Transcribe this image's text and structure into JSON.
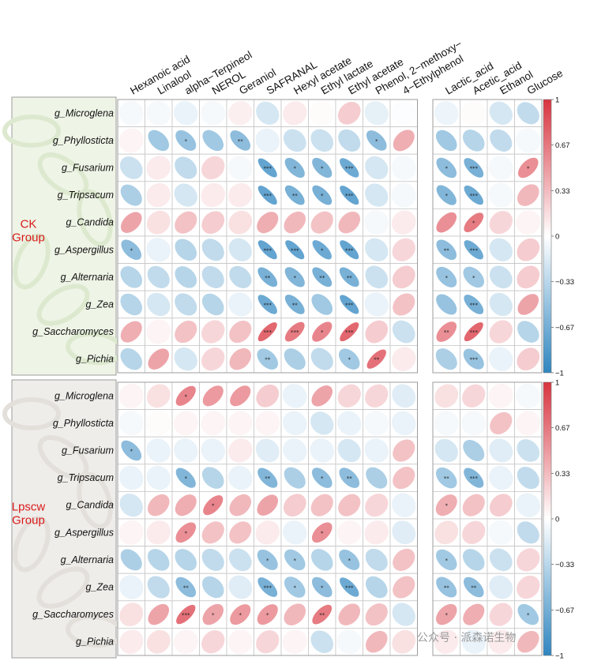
{
  "watermark": "公众号 · 派森诺生物",
  "chart_data": {
    "type": "heatmap",
    "glyph": "ellipse",
    "columns": [
      "Hexanoic acid",
      "Linalool",
      "alpha−Terpineol",
      "NEROL",
      "Geraniol",
      "SAFRANAL",
      "Hexyl acetate",
      "Ethyl lactate",
      "Ethyl acetate",
      "Phenol, 2−methoxy−",
      "4−Ethylphenol",
      "Lactic_acid",
      "Acetic_acid",
      "Ethanol",
      "Glucose"
    ],
    "colorbar": {
      "min": -1,
      "max": 1,
      "ticks": [
        "1",
        "0.67",
        "0.33",
        "0",
        "−0.33",
        "−0.67",
        "−1"
      ],
      "neg_color": "#2f86c0",
      "mid_color": "#ffffff",
      "pos_color": "#d8343f"
    },
    "groups": [
      {
        "label_line1": "CK",
        "label_line2": "Group",
        "rows": [
          "g_Microglena",
          "g_Phyllosticta",
          "g_Fusarium",
          "g_Tripsacum",
          "g_Candida",
          "g_Aspergillus",
          "g_Alternaria",
          "g_Zea",
          "g_Saccharomyces",
          "g_Pichia"
        ],
        "values": [
          [
            -0.05,
            -0.05,
            -0.1,
            -0.05,
            0.08,
            -0.2,
            0.1,
            0.02,
            0.25,
            -0.12,
            -0.02,
            -0.08,
            0.02,
            -0.2,
            -0.3
          ],
          [
            0.05,
            -0.45,
            -0.5,
            -0.45,
            -0.55,
            -0.1,
            -0.25,
            -0.25,
            -0.3,
            -0.55,
            0.4,
            -0.45,
            -0.35,
            -0.3,
            -0.05
          ],
          [
            -0.25,
            0.1,
            -0.3,
            0.2,
            -0.05,
            -0.75,
            -0.6,
            -0.6,
            -0.7,
            -0.2,
            -0.05,
            -0.55,
            -0.65,
            -0.05,
            0.55
          ],
          [
            -0.4,
            0.1,
            -0.2,
            0.1,
            0.1,
            -0.75,
            -0.65,
            -0.65,
            -0.75,
            -0.2,
            -0.05,
            -0.6,
            -0.7,
            -0.05,
            0.35
          ],
          [
            0.45,
            0.15,
            0.3,
            0.25,
            0.15,
            0.4,
            0.35,
            0.3,
            0.35,
            -0.05,
            0.1,
            0.55,
            0.65,
            0.2,
            0.05
          ],
          [
            -0.55,
            -0.1,
            -0.35,
            -0.3,
            -0.2,
            -0.75,
            -0.75,
            -0.7,
            -0.75,
            -0.2,
            0.2,
            -0.55,
            -0.7,
            -0.2,
            0.25
          ],
          [
            -0.35,
            -0.3,
            -0.35,
            -0.3,
            -0.3,
            -0.65,
            -0.6,
            -0.65,
            -0.65,
            -0.25,
            0.25,
            -0.5,
            -0.45,
            -0.25,
            0.25
          ],
          [
            -0.35,
            -0.2,
            -0.3,
            -0.35,
            -0.1,
            -0.7,
            -0.65,
            -0.45,
            -0.75,
            -0.1,
            0.3,
            -0.5,
            -0.65,
            -0.2,
            0.45
          ],
          [
            0.4,
            0.05,
            0.3,
            0.2,
            0.3,
            0.75,
            0.65,
            0.6,
            0.75,
            0.25,
            -0.25,
            0.55,
            0.75,
            0.2,
            -0.35
          ],
          [
            -0.35,
            0.45,
            -0.2,
            0.2,
            0.35,
            -0.45,
            -0.4,
            -0.3,
            -0.45,
            0.7,
            0.1,
            -0.4,
            -0.5,
            -0.1,
            0.25
          ]
        ],
        "stars": [
          [
            "",
            "",
            "",
            "",
            "",
            "",
            "",
            "",
            "",
            "",
            "",
            "",
            "",
            "",
            ""
          ],
          [
            "",
            "",
            "*",
            "",
            "**",
            "",
            "",
            "",
            "",
            "*",
            "",
            "",
            "",
            "",
            ""
          ],
          [
            "",
            "",
            "",
            "",
            "",
            "***",
            "*",
            "*",
            "***",
            "",
            "",
            "*",
            "***",
            "",
            "*"
          ],
          [
            "",
            "",
            "",
            "",
            "",
            "***",
            "**",
            "*",
            "***",
            "",
            "",
            "*",
            "***",
            "",
            ""
          ],
          [
            "",
            "",
            "",
            "",
            "",
            "",
            "",
            "",
            "",
            "",
            "",
            "",
            "*",
            "",
            ""
          ],
          [
            "*",
            "",
            "",
            "",
            "",
            "***",
            "***",
            "*",
            "***",
            "",
            "",
            "**",
            "***",
            "",
            ""
          ],
          [
            "",
            "",
            "",
            "",
            "",
            "**",
            "*",
            "**",
            "**",
            "",
            "",
            "*",
            "*",
            "",
            ""
          ],
          [
            "",
            "",
            "",
            "",
            "",
            "***",
            "**",
            "",
            "***",
            "",
            "",
            "",
            "***",
            "",
            ""
          ],
          [
            "",
            "",
            "",
            "",
            "",
            "***",
            "***",
            "*",
            "***",
            "",
            "",
            "**",
            "***",
            "",
            ""
          ],
          [
            "",
            "",
            "",
            "",
            "",
            "**",
            "",
            "",
            "*",
            "**",
            "",
            "",
            "***",
            "",
            ""
          ]
        ]
      },
      {
        "label_line1": "Lpscw",
        "label_line2": "Group",
        "rows": [
          "g_Microglena",
          "g_Phyllosticta",
          "g_Fusarium",
          "g_Tripsacum",
          "g_Candida",
          "g_Aspergillus",
          "g_Alternaria",
          "g_Zea",
          "g_Saccharomyces",
          "g_Pichia"
        ],
        "values": [
          [
            0.05,
            0.15,
            0.6,
            0.5,
            0.5,
            0.25,
            -0.1,
            0.45,
            0.2,
            0.2,
            -0.15,
            0.15,
            0.2,
            0.05,
            -0.05
          ],
          [
            -0.05,
            0.02,
            0.05,
            0.05,
            0.05,
            0.05,
            -0.1,
            -0.2,
            -0.1,
            -0.05,
            -0.1,
            -0.05,
            -0.05,
            0.3,
            0.05
          ],
          [
            -0.55,
            -0.1,
            -0.1,
            -0.1,
            0.1,
            -0.15,
            -0.1,
            -0.1,
            -0.2,
            -0.1,
            0.3,
            -0.2,
            -0.4,
            -0.15,
            -0.25
          ],
          [
            -0.1,
            -0.1,
            -0.6,
            -0.35,
            -0.1,
            -0.6,
            -0.4,
            -0.55,
            -0.55,
            -0.4,
            0.3,
            -0.45,
            -0.6,
            -0.1,
            -0.3
          ],
          [
            -0.2,
            0.35,
            0.4,
            0.6,
            0.35,
            0.45,
            0.25,
            0.3,
            0.3,
            0.2,
            -0.1,
            0.4,
            0.3,
            0.25,
            -0.1
          ],
          [
            0.05,
            0.1,
            0.55,
            0.3,
            0.3,
            0.1,
            -0.1,
            0.55,
            0.05,
            0.1,
            -0.15,
            0.15,
            0.2,
            -0.05,
            -0.3
          ],
          [
            -0.4,
            -0.35,
            -0.35,
            -0.3,
            -0.25,
            -0.5,
            -0.45,
            -0.35,
            -0.5,
            -0.3,
            0.3,
            -0.45,
            -0.35,
            -0.25,
            0.2
          ],
          [
            -0.1,
            -0.3,
            -0.55,
            -0.35,
            -0.15,
            -0.65,
            -0.45,
            -0.55,
            -0.7,
            -0.35,
            0.3,
            -0.5,
            -0.55,
            -0.15,
            0.2
          ],
          [
            0.15,
            0.45,
            0.7,
            0.45,
            0.5,
            0.5,
            0.35,
            0.65,
            0.35,
            0.3,
            -0.2,
            0.45,
            0.4,
            0.2,
            -0.45
          ],
          [
            0.1,
            0.15,
            0.05,
            0.2,
            0.05,
            0.2,
            0.05,
            -0.25,
            -0.05,
            0.35,
            0.15,
            0.1,
            -0.1,
            0.1,
            0.35
          ]
        ],
        "stars": [
          [
            "",
            "",
            "*",
            "",
            "",
            "",
            "",
            "",
            "",
            "",
            "",
            "",
            "",
            "",
            ""
          ],
          [
            "",
            "",
            "",
            "",
            "",
            "",
            "",
            "",
            "",
            "",
            "",
            "",
            "",
            "",
            ""
          ],
          [
            "*",
            "",
            "",
            "",
            "",
            "",
            "",
            "",
            "",
            "",
            "",
            "",
            "",
            "",
            ""
          ],
          [
            "",
            "",
            "*",
            "",
            "",
            "**",
            "",
            "*",
            "**",
            "",
            "",
            "**",
            "***",
            "",
            ""
          ],
          [
            "",
            "",
            "",
            "*",
            "",
            "",
            "",
            "",
            "",
            "",
            "",
            "*",
            "",
            "",
            ""
          ],
          [
            "",
            "",
            "*",
            "",
            "",
            "",
            "",
            "*",
            "",
            "",
            "",
            "",
            "",
            "",
            ""
          ],
          [
            "",
            "",
            "",
            "",
            "",
            "*",
            "*",
            "",
            "*",
            "",
            "",
            "*",
            "",
            "",
            ""
          ],
          [
            "",
            "",
            "**",
            "",
            "",
            "***",
            "*",
            "*",
            "***",
            "",
            "",
            "**",
            "**",
            "",
            ""
          ],
          [
            "",
            "",
            "***",
            "*",
            "*",
            "*",
            "",
            "**",
            "",
            "",
            "",
            "*",
            "",
            "",
            "*"
          ],
          [
            "",
            "",
            "",
            "",
            "",
            "",
            "",
            "",
            "",
            "",
            "",
            "",
            "",
            "",
            ""
          ]
        ]
      }
    ]
  }
}
